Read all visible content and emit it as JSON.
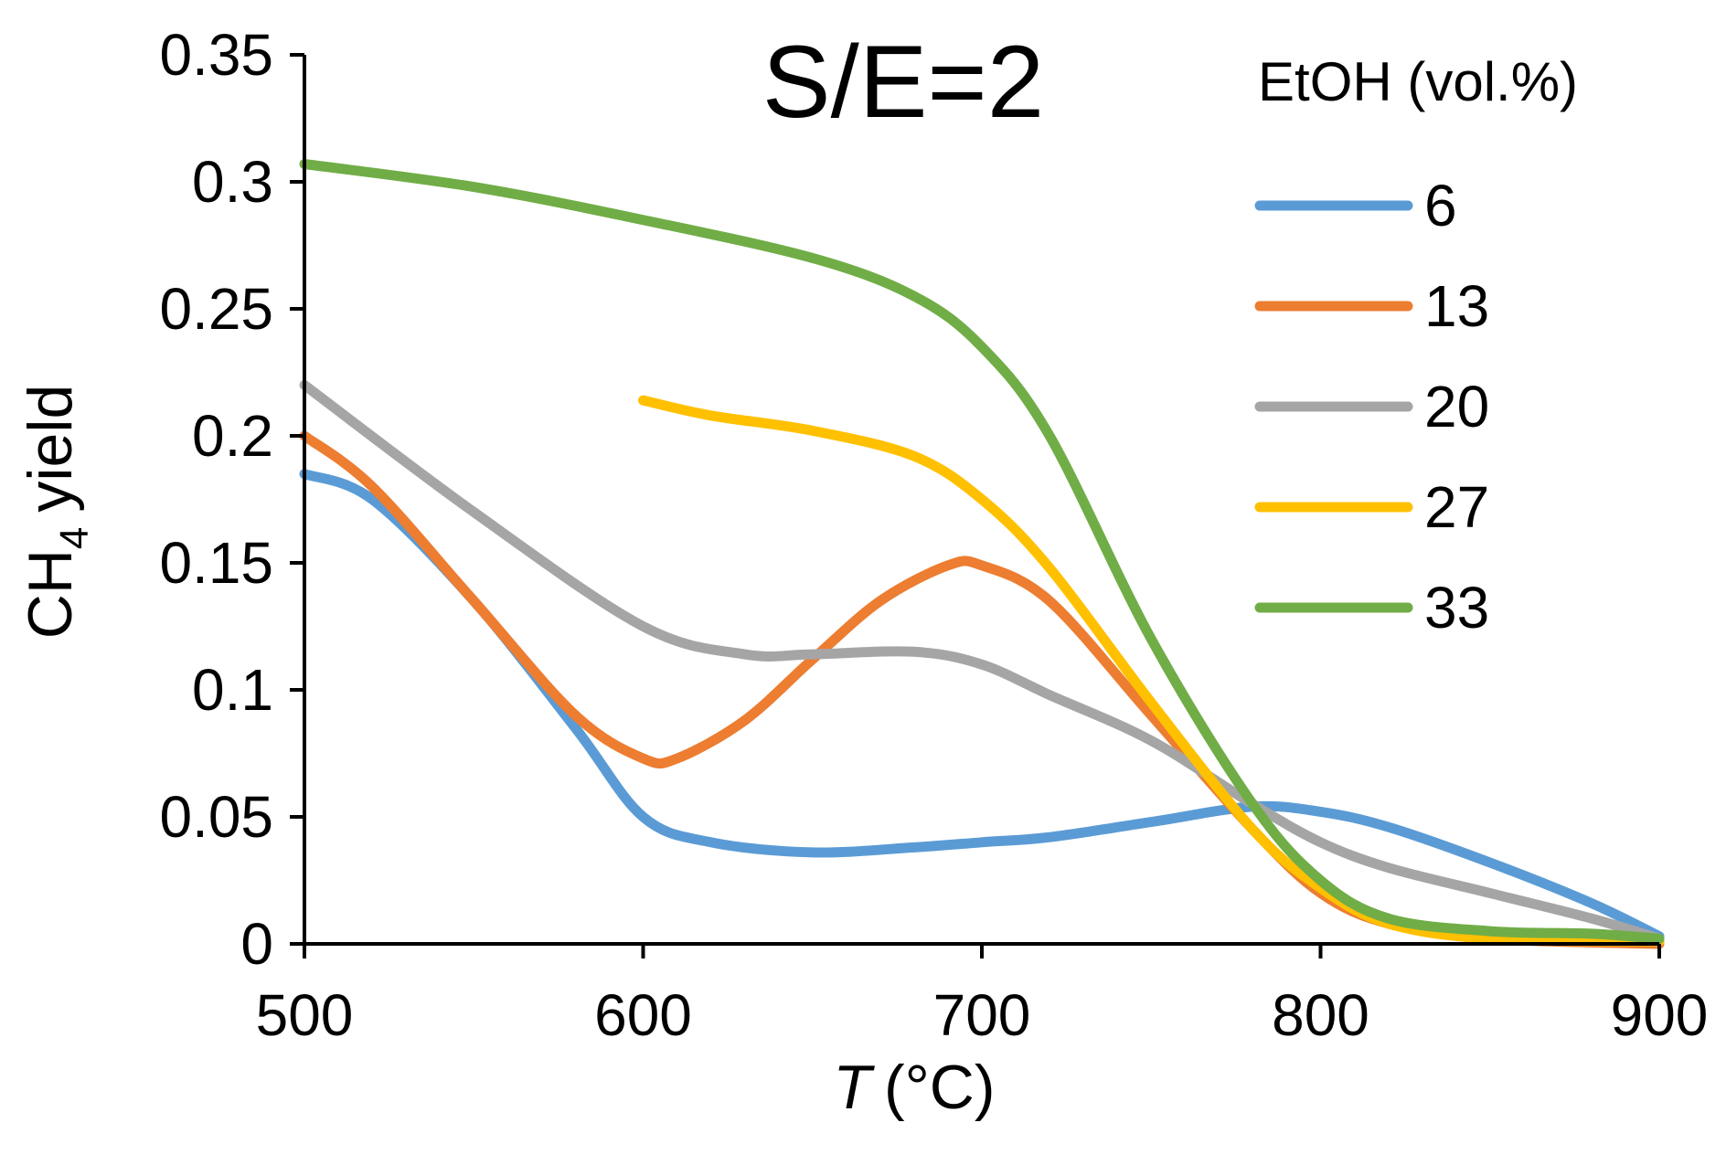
{
  "chart_data": {
    "type": "line",
    "title": "S/E=2",
    "xlabel_italic": "T",
    "xlabel_unit": "(°C)",
    "ylabel_main": "CH",
    "ylabel_sub": "4",
    "ylabel_rest": "yield",
    "xlim": [
      500,
      900
    ],
    "ylim": [
      0,
      0.35
    ],
    "x_ticks": [
      500,
      600,
      700,
      800,
      900
    ],
    "x_tick_labels": [
      "500",
      "600",
      "700",
      "800",
      "900"
    ],
    "y_ticks": [
      0,
      0.05,
      0.1,
      0.15,
      0.2,
      0.25,
      0.3,
      0.35
    ],
    "y_tick_labels": [
      "0",
      "0.05",
      "0.1",
      "0.15",
      "0.2",
      "0.25",
      "0.3",
      "0.35"
    ],
    "legend_title": "EtOH (vol.%)",
    "legend_position": "top-right",
    "series": [
      {
        "name": "6",
        "color": "#5B9BD5",
        "x": [
          500,
          520,
          550,
          580,
          600,
          620,
          650,
          680,
          700,
          720,
          750,
          780,
          800,
          820,
          850,
          880,
          900
        ],
        "y": [
          0.185,
          0.175,
          0.135,
          0.085,
          0.05,
          0.04,
          0.036,
          0.038,
          0.04,
          0.042,
          0.048,
          0.054,
          0.052,
          0.046,
          0.032,
          0.016,
          0.003
        ]
      },
      {
        "name": "13",
        "color": "#ED7D31",
        "x": [
          500,
          520,
          550,
          580,
          600,
          610,
          630,
          650,
          670,
          690,
          700,
          720,
          750,
          780,
          800,
          820,
          850,
          900
        ],
        "y": [
          0.2,
          0.18,
          0.135,
          0.09,
          0.073,
          0.073,
          0.088,
          0.112,
          0.135,
          0.149,
          0.149,
          0.135,
          0.09,
          0.045,
          0.02,
          0.008,
          0.002,
          0.0
        ]
      },
      {
        "name": "20",
        "color": "#A5A5A5",
        "x": [
          500,
          550,
          600,
          630,
          650,
          680,
          700,
          720,
          750,
          780,
          800,
          820,
          850,
          880,
          900
        ],
        "y": [
          0.22,
          0.17,
          0.125,
          0.114,
          0.114,
          0.115,
          0.11,
          0.098,
          0.08,
          0.055,
          0.04,
          0.03,
          0.02,
          0.01,
          0.002
        ]
      },
      {
        "name": "27",
        "color": "#FFC000",
        "x": [
          600,
          620,
          650,
          680,
          700,
          720,
          750,
          780,
          800,
          820,
          850,
          900
        ],
        "y": [
          0.214,
          0.208,
          0.202,
          0.192,
          0.175,
          0.148,
          0.095,
          0.045,
          0.022,
          0.008,
          0.002,
          0.001
        ]
      },
      {
        "name": "33",
        "color": "#70AD47",
        "x": [
          500,
          550,
          600,
          650,
          680,
          700,
          720,
          750,
          780,
          800,
          820,
          850,
          880,
          900
        ],
        "y": [
          0.307,
          0.298,
          0.285,
          0.27,
          0.255,
          0.235,
          0.2,
          0.12,
          0.055,
          0.025,
          0.01,
          0.005,
          0.004,
          0.002
        ]
      }
    ]
  }
}
